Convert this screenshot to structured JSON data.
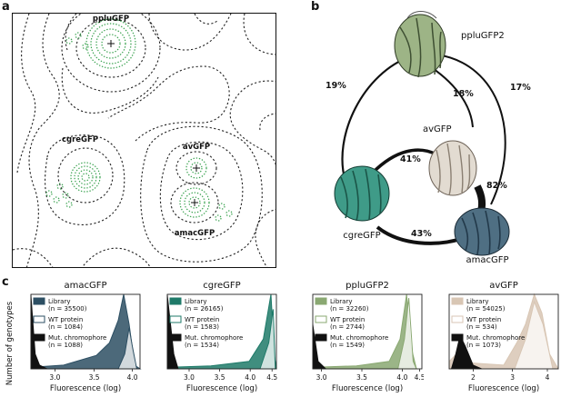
{
  "panels": {
    "a": {
      "letter": "a",
      "labels": {
        "ppluGFP": "ppluGFP",
        "cgreGFP": "cgreGFP",
        "avGFP": "avGFP",
        "amacGFP": "amacGFP"
      }
    },
    "b": {
      "letter": "b",
      "proteins": {
        "ppluGFP2": "ppluGFP2",
        "avGFP": "avGFP",
        "cgreGFP": "cgreGFP",
        "amacGFP": "amacGFP"
      },
      "edges": {
        "ppluGFP2_cgreGFP": "19%",
        "ppluGFP2_avGFP": "18%",
        "ppluGFP2_amacGFP": "17%",
        "avGFP_cgreGFP": "41%",
        "avGFP_amacGFP": "82%",
        "cgreGFP_amacGFP": "43%"
      },
      "colors": {
        "ppluGFP2": "#8fa876",
        "avGFP": "#d3c9bd",
        "cgreGFP": "#2f8a78",
        "amacGFP": "#3c5d72"
      }
    },
    "c": {
      "letter": "c",
      "ylabel": "Number of genotypes",
      "xlabel": "Fluorescence (log)",
      "charts": [
        {
          "title": "amacGFP",
          "color": "#2d4f63",
          "legend": [
            {
              "name": "Library",
              "n": "(n = 35500)"
            },
            {
              "name": "WT protein",
              "n": "(n = 1084)"
            },
            {
              "name": "Mut. chromophore",
              "n": "(n = 1088)"
            }
          ],
          "ticks": [
            "3.0",
            "3.5",
            "4.0"
          ]
        },
        {
          "title": "cgreGFP",
          "color": "#1f7a69",
          "legend": [
            {
              "name": "Library",
              "n": "(n = 26165)"
            },
            {
              "name": "WT protein",
              "n": "(n = 1583)"
            },
            {
              "name": "Mut. chromophore",
              "n": "(n = 1534)"
            }
          ],
          "ticks": [
            "3.0",
            "3.5",
            "4.0",
            "4.5"
          ]
        },
        {
          "title": "ppluGFP2",
          "color": "#8aa872",
          "legend": [
            {
              "name": "Library",
              "n": "(n = 32260)"
            },
            {
              "name": "WT protein",
              "n": "(n = 2744)"
            },
            {
              "name": "Mut. chromophore",
              "n": "(n = 1549)"
            }
          ],
          "ticks": [
            "3.0",
            "3.5",
            "4.0",
            "4.5"
          ]
        },
        {
          "title": "avGFP",
          "color": "#d8c6b4",
          "legend": [
            {
              "name": "Library",
              "n": "(n = 54025)"
            },
            {
              "name": "WT protein",
              "n": "(n = 534)"
            },
            {
              "name": "Mut. chromophore",
              "n": "(n = 1073)"
            }
          ],
          "ticks": [
            "2",
            "3",
            "4"
          ]
        }
      ]
    }
  }
}
